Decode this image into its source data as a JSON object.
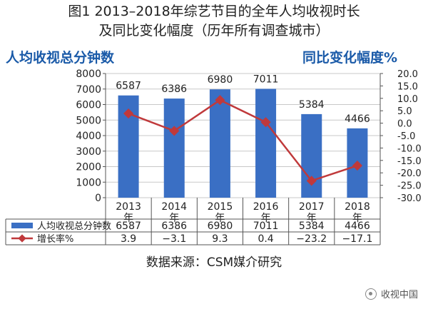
{
  "chart_data": {
    "type": "bar",
    "title": "图1  2013–2018年综艺节目的全年人均收视时长",
    "subtitle": "及同比变化幅度（历年所有调查城市）",
    "ylabel": "人均收视总分钟数",
    "ylabel_right": "同比变化幅度%",
    "categories": [
      "2013\n年",
      "2014\n年",
      "2015\n年",
      "2016\n年",
      "2017\n年",
      "2018\n年"
    ],
    "ylim": [
      0,
      8000
    ],
    "yticks": [
      "0",
      "1000",
      "2000",
      "3000",
      "4000",
      "5000",
      "6000",
      "7000",
      "8000"
    ],
    "ylim_right": [
      -30,
      20
    ],
    "yticks_right": [
      "-30.0",
      "-25.0",
      "-20.0",
      "-15.0",
      "-10.0",
      "-5.0",
      "0.0",
      "5.0",
      "10.0",
      "15.0",
      "20.0"
    ],
    "grid": true,
    "series": [
      {
        "name": "人均收视总分钟数",
        "type": "bar",
        "axis": "left",
        "color": "#3a6fc4",
        "values": [
          6587,
          6386,
          6980,
          7011,
          5384,
          4466
        ],
        "labels": [
          "6587",
          "6386",
          "6980",
          "7011",
          "5384",
          "4466"
        ]
      },
      {
        "name": "增长率%",
        "type": "line",
        "axis": "right",
        "color": "#c0393b",
        "values": [
          3.9,
          -3.1,
          9.3,
          0.4,
          -23.2,
          -17.1
        ],
        "labels": [
          "3.9",
          "−3.1",
          "9.3",
          "0.4",
          "−23.2",
          "−17.1"
        ]
      }
    ],
    "legend_placement": "table-below"
  },
  "source_text": "数据来源：CSM媒介研究",
  "watermark_text": "收视中国"
}
